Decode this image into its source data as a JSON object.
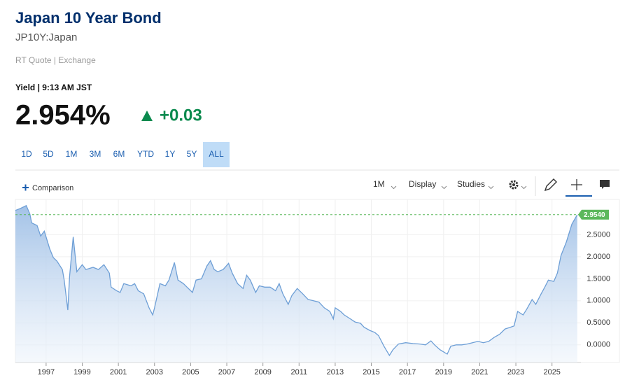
{
  "header": {
    "title": "Japan 10 Year Bond",
    "symbol": "JP10Y:Japan",
    "source": "RT Quote | Exchange",
    "timestamp": "Yield | 9:13 AM JST",
    "price": "2.954%",
    "change": "+0.03"
  },
  "tabs": [
    "1D",
    "5D",
    "1M",
    "3M",
    "6M",
    "YTD",
    "1Y",
    "5Y",
    "ALL"
  ],
  "active_tab": "ALL",
  "toolbar": {
    "comparison": "Comparison",
    "interval": "1M",
    "display": "Display",
    "studies": "Studies"
  },
  "chart_data": {
    "type": "area",
    "color": "#6e9fd6",
    "x": [
      1995.3,
      1995.6,
      1995.9,
      1996.1,
      1996.2,
      1996.5,
      1996.7,
      1996.9,
      1997.2,
      1997.4,
      1997.6,
      1997.9,
      1998.0,
      1998.2,
      1998.3,
      1998.5,
      1998.7,
      1999.0,
      1999.2,
      1999.6,
      1999.9,
      2000.2,
      2000.5,
      2000.6,
      2000.9,
      2001.1,
      2001.3,
      2001.7,
      2001.9,
      2002.1,
      2002.4,
      2002.7,
      2002.9,
      2003.0,
      2003.3,
      2003.6,
      2003.8,
      2004.1,
      2004.3,
      2004.6,
      2004.8,
      2005.1,
      2005.3,
      2005.6,
      2005.9,
      2006.1,
      2006.3,
      2006.5,
      2006.8,
      2007.1,
      2007.3,
      2007.6,
      2007.9,
      2008.1,
      2008.3,
      2008.6,
      2008.8,
      2009.1,
      2009.4,
      2009.7,
      2009.9,
      2010.1,
      2010.4,
      2010.6,
      2010.9,
      2011.2,
      2011.5,
      2011.8,
      2012.1,
      2012.4,
      2012.7,
      2012.9,
      2013.0,
      2013.3,
      2013.5,
      2013.8,
      2014.1,
      2014.4,
      2014.6,
      2014.9,
      2015.2,
      2015.4,
      2015.7,
      2016.0,
      2016.2,
      2016.5,
      2016.9,
      2017.3,
      2017.7,
      2018.0,
      2018.3,
      2018.5,
      2018.8,
      2019.2,
      2019.4,
      2019.7,
      2020.0,
      2020.3,
      2020.6,
      2020.9,
      2021.2,
      2021.5,
      2021.8,
      2022.1,
      2022.4,
      2022.7,
      2022.9,
      2023.1,
      2023.4,
      2023.6,
      2023.9,
      2024.1,
      2024.4,
      2024.6,
      2024.8,
      2025.1,
      2025.3,
      2025.5,
      2025.8,
      2026.1,
      2026.4
    ],
    "values": [
      3.05,
      3.1,
      3.16,
      2.97,
      2.77,
      2.71,
      2.47,
      2.58,
      2.18,
      1.98,
      1.9,
      1.71,
      1.47,
      0.79,
      1.55,
      2.45,
      1.66,
      1.82,
      1.71,
      1.76,
      1.71,
      1.82,
      1.63,
      1.31,
      1.23,
      1.19,
      1.39,
      1.34,
      1.39,
      1.23,
      1.16,
      0.84,
      0.68,
      0.84,
      1.39,
      1.34,
      1.47,
      1.87,
      1.47,
      1.39,
      1.31,
      1.19,
      1.47,
      1.5,
      1.79,
      1.91,
      1.71,
      1.66,
      1.71,
      1.85,
      1.63,
      1.39,
      1.28,
      1.58,
      1.47,
      1.19,
      1.34,
      1.31,
      1.31,
      1.23,
      1.39,
      1.16,
      0.92,
      1.12,
      1.28,
      1.16,
      1.03,
      1.0,
      0.97,
      0.84,
      0.76,
      0.59,
      0.84,
      0.76,
      0.68,
      0.6,
      0.52,
      0.49,
      0.4,
      0.33,
      0.28,
      0.21,
      -0.03,
      -0.24,
      -0.11,
      0.02,
      0.05,
      0.03,
      0.02,
      0.0,
      0.09,
      0.0,
      -0.11,
      -0.21,
      -0.03,
      0.0,
      0.0,
      0.02,
      0.05,
      0.08,
      0.05,
      0.08,
      0.17,
      0.24,
      0.36,
      0.4,
      0.43,
      0.76,
      0.68,
      0.81,
      1.03,
      0.92,
      1.16,
      1.31,
      1.47,
      1.44,
      1.63,
      2.03,
      2.34,
      2.74,
      2.954
    ],
    "xlim": [
      1995.3,
      2026.6
    ],
    "ylim": [
      -0.4,
      3.3
    ],
    "xticks": [
      1997,
      1999,
      2001,
      2003,
      2005,
      2007,
      2009,
      2011,
      2013,
      2015,
      2017,
      2019,
      2021,
      2023,
      2025
    ],
    "yticks": [
      {
        "value": 0,
        "label": "0.0000"
      },
      {
        "value": 0.5,
        "label": "0.5000"
      },
      {
        "value": 1,
        "label": "1.0000"
      },
      {
        "value": 1.5,
        "label": "1.5000"
      },
      {
        "value": 2,
        "label": "2.0000"
      },
      {
        "value": 2.5,
        "label": "2.5000"
      }
    ],
    "grid": true,
    "reference_line": {
      "value": 2.954,
      "label": "2.9540",
      "color": "#5cb85c"
    }
  }
}
